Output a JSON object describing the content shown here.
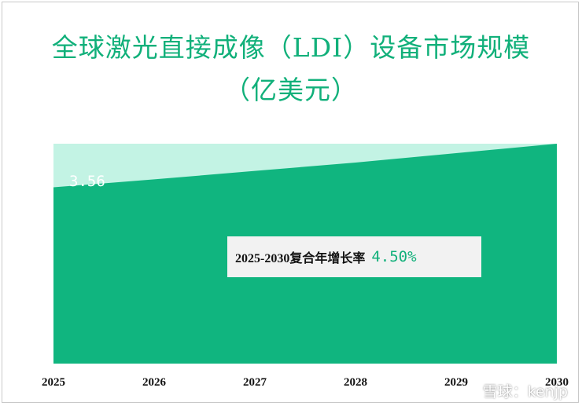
{
  "title_line1": "全球激光直接成像（LDI）设备市场规模",
  "title_line2": "（亿美元）",
  "chart_data": {
    "type": "area",
    "title": "全球激光直接成像（LDI）设备市场规模（亿美元）",
    "categories": [
      "2025",
      "2026",
      "2027",
      "2028",
      "2029",
      "2030"
    ],
    "series": [
      {
        "values": [
          3.56,
          3.72,
          3.89,
          4.06,
          4.25,
          4.44
        ]
      }
    ],
    "ylim": [
      0,
      4.44
    ],
    "start_label": "3.56",
    "cagr_label": "2025-2030复合年增长率",
    "cagr_value": "4.50%",
    "grid": false,
    "legend": "none"
  },
  "colors": {
    "title": "#11b07a",
    "area_fill": "#10b57f",
    "background_band": "#c3f3e4",
    "cagr_value": "#11b07a",
    "cagr_box": "#f2f2f2"
  },
  "watermark": "雪球：kenjp"
}
